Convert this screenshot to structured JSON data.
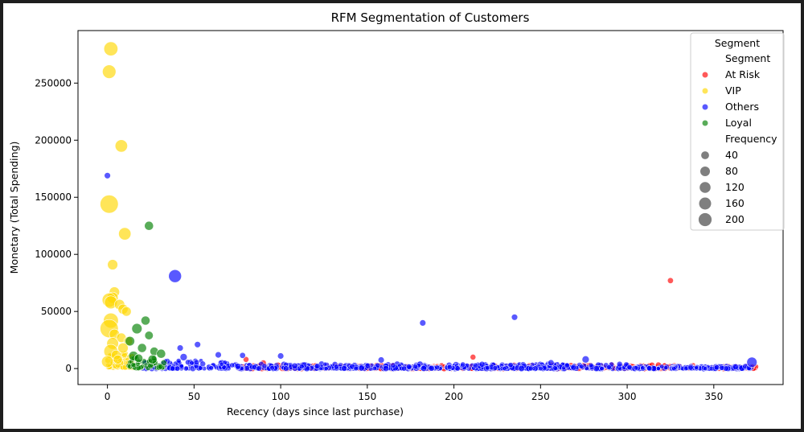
{
  "chart_data": {
    "type": "scatter",
    "title": "RFM Segmentation of Customers",
    "xlabel": "Recency (days since last purchase)",
    "ylabel": "Monetary (Total Spending)",
    "xlim": [
      -17,
      390
    ],
    "ylim": [
      -14000,
      296000
    ],
    "xticks": [
      0,
      50,
      100,
      150,
      200,
      250,
      300,
      350
    ],
    "yticks": [
      0,
      50000,
      100000,
      150000,
      200000,
      250000
    ],
    "grid": false,
    "legend": {
      "title": "Segment",
      "placement": "top-right",
      "hue_title": "Segment",
      "size_title": "Frequency",
      "sizes": [
        40,
        80,
        120,
        160,
        200
      ]
    },
    "series": [
      {
        "name": "At Risk",
        "color": "#ff0000",
        "points": [
          [
            325,
            77000,
            4
          ],
          [
            211,
            10000,
            3
          ],
          [
            80,
            8000,
            3
          ],
          [
            90,
            5000,
            3
          ],
          [
            140,
            2500,
            2
          ],
          [
            275,
            3000,
            2
          ],
          [
            318,
            3200,
            3
          ],
          [
            330,
            2200,
            2
          ],
          [
            352,
            1000,
            3
          ],
          [
            372,
            1500,
            3
          ],
          [
            360,
            1200,
            2
          ],
          [
            260,
            1800,
            2
          ],
          [
            300,
            1500,
            2
          ],
          [
            240,
            1200,
            2
          ],
          [
            190,
            1600,
            2
          ],
          [
            170,
            1300,
            2
          ],
          [
            120,
            900,
            2
          ],
          [
            100,
            1100,
            2
          ]
        ],
        "spread": [
          [
            75,
            340,
            0,
            3000
          ],
          [
            348,
            375,
            0,
            1800
          ]
        ]
      },
      {
        "name": "VIP",
        "color": "#ffd700",
        "points": [
          [
            2,
            280000,
            100
          ],
          [
            1,
            260000,
            90
          ],
          [
            8,
            195000,
            70
          ],
          [
            1,
            144000,
            200
          ],
          [
            10,
            118000,
            70
          ],
          [
            3,
            91000,
            40
          ],
          [
            4,
            67000,
            40
          ],
          [
            3,
            62000,
            50
          ],
          [
            1,
            60000,
            100
          ],
          [
            2,
            58000,
            80
          ],
          [
            7,
            56000,
            40
          ],
          [
            9,
            52000,
            35
          ],
          [
            11,
            50000,
            30
          ],
          [
            2,
            42000,
            120
          ],
          [
            1,
            35000,
            200
          ],
          [
            4,
            30000,
            40
          ],
          [
            8,
            27000,
            30
          ],
          [
            12,
            24000,
            25
          ],
          [
            3,
            22000,
            60
          ],
          [
            2,
            15000,
            100
          ],
          [
            5,
            12000,
            30
          ],
          [
            9,
            18000,
            40
          ],
          [
            6,
            8000,
            25
          ],
          [
            0,
            6000,
            60
          ]
        ],
        "spread": [
          [
            0,
            15,
            1000,
            14000
          ]
        ]
      },
      {
        "name": "Others",
        "color": "#0000ff",
        "points": [
          [
            0,
            169000,
            5
          ],
          [
            39,
            81000,
            80
          ],
          [
            235,
            45000,
            5
          ],
          [
            182,
            40000,
            5
          ],
          [
            52,
            21000,
            5
          ],
          [
            42,
            18000,
            5
          ],
          [
            64,
            12000,
            5
          ],
          [
            100,
            11000,
            5
          ],
          [
            78,
            11500,
            4
          ],
          [
            276,
            8000,
            10
          ],
          [
            158,
            7500,
            5
          ],
          [
            372,
            5500,
            40
          ],
          [
            256,
            5000,
            5
          ],
          [
            44,
            10000,
            10
          ]
        ],
        "spread": [
          [
            20,
            70,
            0,
            7000
          ],
          [
            70,
            300,
            0,
            4000
          ],
          [
            300,
            372,
            0,
            2000
          ]
        ]
      },
      {
        "name": "Loyal",
        "color": "#008000",
        "points": [
          [
            24,
            125000,
            25
          ],
          [
            17,
            35000,
            40
          ],
          [
            22,
            42000,
            25
          ],
          [
            24,
            29000,
            20
          ],
          [
            13,
            24000,
            30
          ],
          [
            20,
            18000,
            25
          ],
          [
            27,
            15000,
            20
          ],
          [
            31,
            13000,
            25
          ],
          [
            15,
            11000,
            30
          ],
          [
            18,
            9000,
            20
          ],
          [
            26,
            8000,
            25
          ]
        ],
        "spread": [
          [
            12,
            33,
            500,
            9000
          ]
        ]
      }
    ]
  }
}
